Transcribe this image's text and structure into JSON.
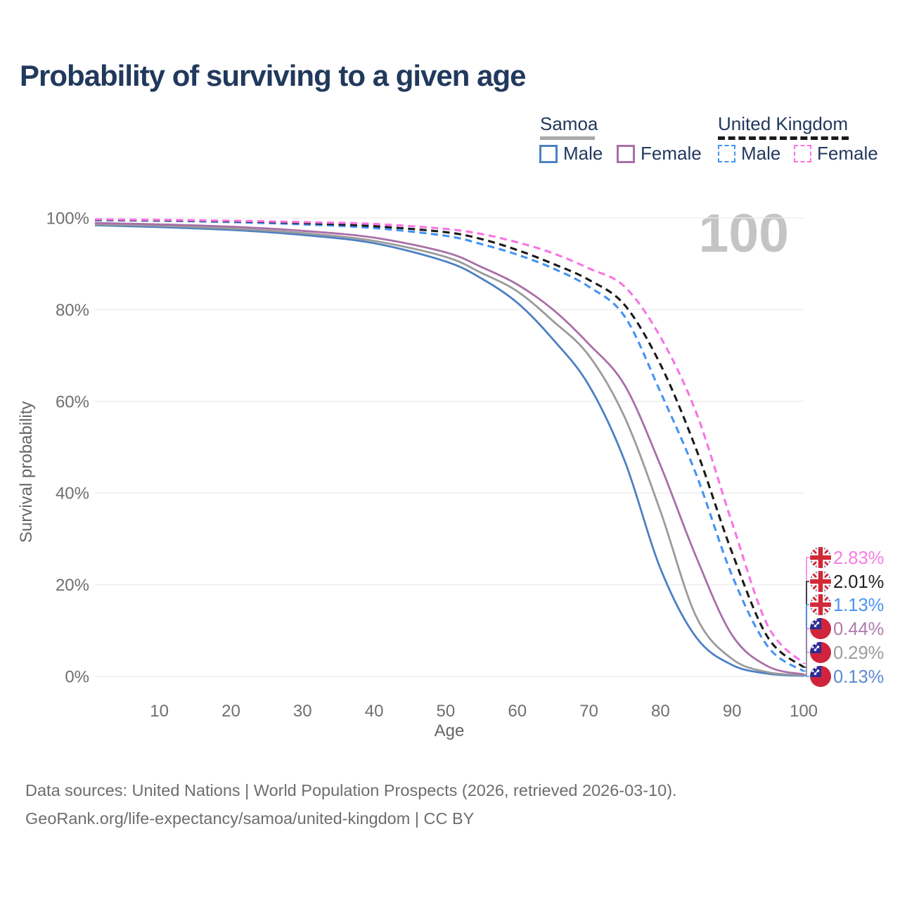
{
  "title": "Probability of surviving to a given age",
  "watermark": "100",
  "legend": {
    "samoa": {
      "label": "Samoa",
      "male": "Male",
      "female": "Female",
      "underline_color": "#a8a8a8",
      "underline_style": "solid"
    },
    "uk": {
      "label": "United Kingdom",
      "male": "Male",
      "female": "Female",
      "underline_color": "#1a1a1a",
      "underline_style": "dashed"
    }
  },
  "axes": {
    "y_label": "Survival probability",
    "x_label": "Age",
    "y_ticks": [
      "100%",
      "80%",
      "60%",
      "40%",
      "20%",
      "0%"
    ],
    "x_ticks": [
      "10",
      "20",
      "30",
      "40",
      "50",
      "60",
      "70",
      "80",
      "90",
      "100"
    ]
  },
  "footer": {
    "line1": "Data sources: United Nations | World Population Prospects (2026, retrieved 2026-03-10).",
    "line2": "GeoRank.org/life-expectancy/samoa/united-kingdom | CC BY"
  },
  "flag_colors": {
    "uk_navy": "#1e2f6f",
    "uk_red": "#d22939",
    "samoa_red": "#d0243c",
    "samoa_blue": "#2b2f94",
    "white": "#ffffff"
  },
  "style_colors": {
    "grid": "#ececec",
    "tick_text": "#6f6f6f",
    "title_navy": "#21395c",
    "watermark_gray": "#c4c4c4"
  },
  "chart_data": {
    "type": "line",
    "x": [
      1,
      10,
      20,
      30,
      40,
      50,
      55,
      60,
      65,
      70,
      75,
      80,
      85,
      90,
      95,
      100
    ],
    "xlabel": "Age",
    "ylabel": "Survival probability",
    "xlim": [
      1,
      100
    ],
    "ylim": [
      0,
      100
    ],
    "grid": "horizontal-only",
    "legend_position": "top-right",
    "y_tick_values": [
      100,
      80,
      60,
      40,
      20,
      0
    ],
    "x_tick_values": [
      10,
      20,
      30,
      40,
      50,
      60,
      70,
      80,
      90,
      100
    ],
    "series": [
      {
        "id": "samoa-male",
        "name": "Samoa Male",
        "style": "solid",
        "color": "#4e80c2",
        "values": [
          98.4,
          98.0,
          97.4,
          96.3,
          94.5,
          90.5,
          86.8,
          81.5,
          73.5,
          63.5,
          47.0,
          23.5,
          8.5,
          2.5,
          0.6,
          0.13
        ],
        "end_label": "0.13%",
        "end_label_color": "#5d8ad0",
        "flag": "samoa"
      },
      {
        "id": "samoa-both",
        "name": "Samoa",
        "style": "solid",
        "color": "#9b9b9b",
        "values": [
          98.6,
          98.3,
          97.7,
          96.7,
          95.0,
          91.5,
          88.0,
          84.0,
          77.5,
          70.0,
          56.5,
          36.0,
          13.0,
          3.8,
          0.9,
          0.29
        ],
        "end_label": "0.29%",
        "end_label_color": "#9c9c9c",
        "flag": "samoa"
      },
      {
        "id": "samoa-female",
        "name": "Samoa Female",
        "style": "solid",
        "color": "#a96fa8",
        "values": [
          98.9,
          98.6,
          98.1,
          97.2,
          95.7,
          92.5,
          89.3,
          85.5,
          80.0,
          72.5,
          63.5,
          46.0,
          26.0,
          9.0,
          2.2,
          0.44
        ],
        "end_label": "0.44%",
        "end_label_color": "#b07cae",
        "flag": "samoa"
      },
      {
        "id": "uk-male",
        "name": "United Kingdom Male",
        "style": "dashed",
        "color": "#4493f2",
        "values": [
          99.5,
          99.4,
          99.1,
          98.6,
          97.8,
          96.1,
          94.3,
          92.0,
          89.0,
          85.0,
          78.5,
          62.0,
          44.0,
          22.0,
          6.5,
          1.13
        ],
        "end_label": "1.13%",
        "end_label_color": "#4a93ee",
        "flag": "uk"
      },
      {
        "id": "uk-both",
        "name": "United Kingdom",
        "style": "dashed",
        "color": "#1a1a1a",
        "values": [
          99.6,
          99.5,
          99.3,
          98.9,
          98.2,
          96.9,
          95.4,
          93.0,
          90.0,
          86.5,
          81.0,
          68.0,
          49.5,
          27.0,
          8.5,
          2.01
        ],
        "end_label": "2.01%",
        "end_label_color": "#1f1f1f",
        "flag": "uk"
      },
      {
        "id": "uk-female",
        "name": "United Kingdom Female",
        "style": "dashed",
        "color": "#f973e3",
        "values": [
          99.7,
          99.6,
          99.4,
          99.1,
          98.7,
          97.6,
          96.5,
          94.7,
          92.3,
          89.0,
          85.0,
          74.0,
          57.5,
          33.5,
          11.0,
          2.83
        ],
        "end_label": "2.83%",
        "end_label_color": "#f97ce4",
        "flag": "uk"
      }
    ]
  }
}
